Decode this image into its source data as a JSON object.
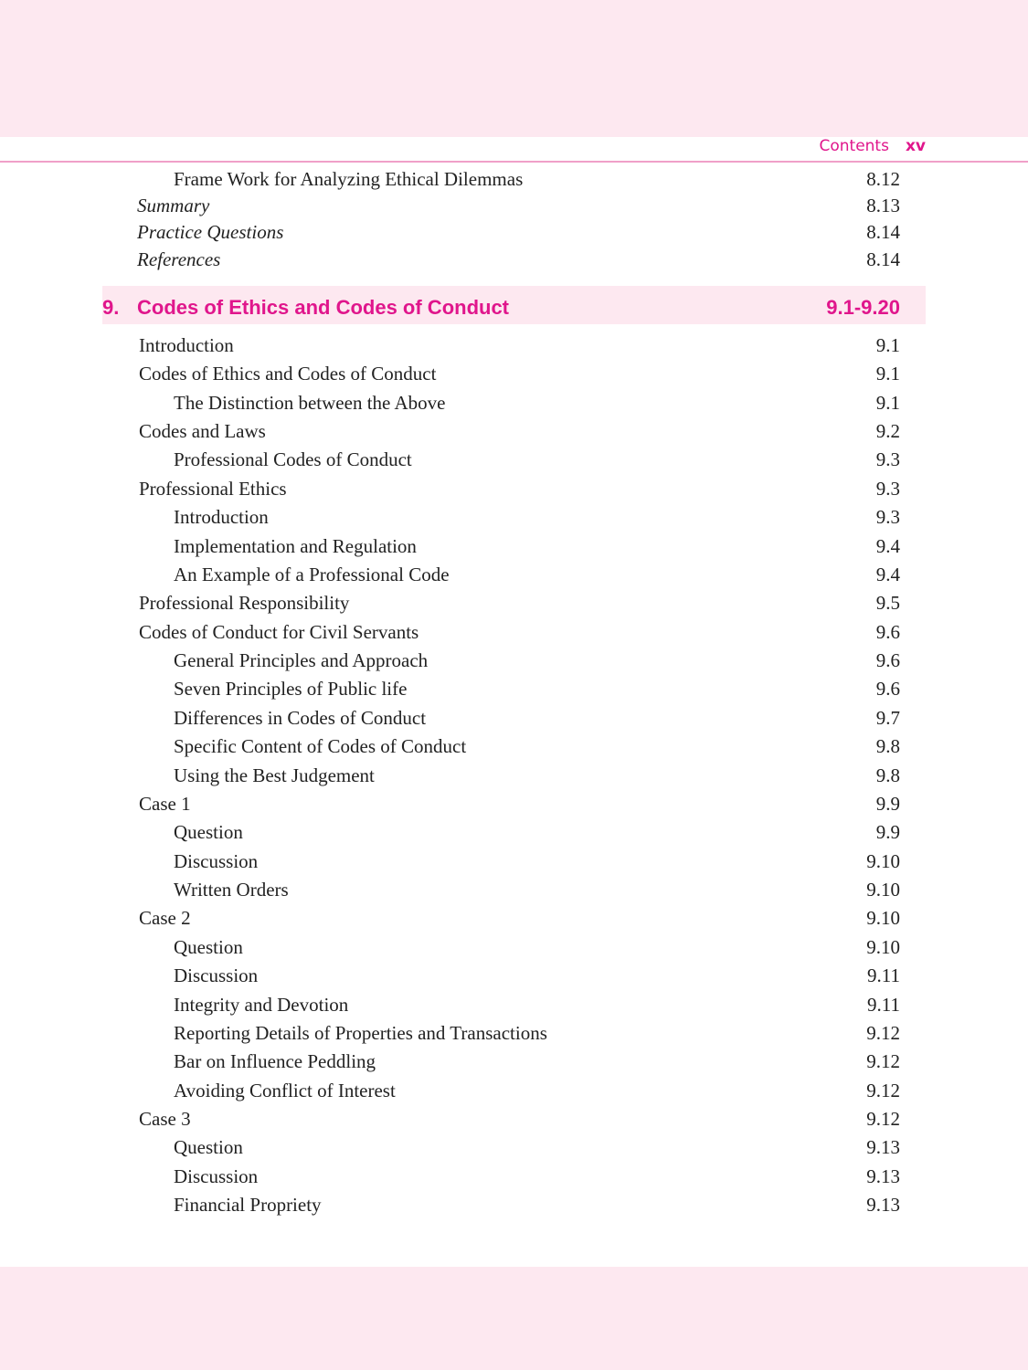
{
  "header": {
    "section": "Contents",
    "page": "xv"
  },
  "pre_entries": [
    {
      "title": "Frame Work for Analyzing Ethical Dilemmas",
      "page": "8.12",
      "style": "l2"
    },
    {
      "title": "Summary",
      "page": "8.13",
      "style": "it"
    },
    {
      "title": "Practice Questions",
      "page": "8.14",
      "style": "it"
    },
    {
      "title": "References",
      "page": "8.14",
      "style": "it"
    }
  ],
  "chapter": {
    "number": "9.",
    "title": "Codes of Ethics and Codes of Conduct",
    "pages": "9.1-9.20"
  },
  "entries": [
    {
      "title": "Introduction",
      "page": "9.1",
      "style": "l1"
    },
    {
      "title": "Codes of Ethics and Codes of Conduct",
      "page": "9.1",
      "style": "l1"
    },
    {
      "title": "The Distinction between the Above",
      "page": "9.1",
      "style": "l2"
    },
    {
      "title": "Codes and Laws",
      "page": "9.2",
      "style": "l1"
    },
    {
      "title": "Professional Codes of Conduct",
      "page": "9.3",
      "style": "l2"
    },
    {
      "title": "Professional Ethics",
      "page": "9.3",
      "style": "l1"
    },
    {
      "title": "Introduction",
      "page": "9.3",
      "style": "l2"
    },
    {
      "title": "Implementation and Regulation",
      "page": "9.4",
      "style": "l2"
    },
    {
      "title": "An Example of a Professional Code",
      "page": "9.4",
      "style": "l2"
    },
    {
      "title": "Professional Responsibility",
      "page": "9.5",
      "style": "l1"
    },
    {
      "title": "Codes of Conduct for Civil Servants",
      "page": "9.6",
      "style": "l1"
    },
    {
      "title": "General Principles and Approach",
      "page": "9.6",
      "style": "l2"
    },
    {
      "title": "Seven Principles of Public life",
      "page": "9.6",
      "style": "l2"
    },
    {
      "title": "Differences in Codes of Conduct",
      "page": "9.7",
      "style": "l2"
    },
    {
      "title": "Specific Content of Codes of Conduct",
      "page": "9.8",
      "style": "l2"
    },
    {
      "title": "Using the Best Judgement",
      "page": "9.8",
      "style": "l2"
    },
    {
      "title": "Case 1",
      "page": "9.9",
      "style": "l1"
    },
    {
      "title": "Question",
      "page": "9.9",
      "style": "l2"
    },
    {
      "title": "Discussion",
      "page": "9.10",
      "style": "l2"
    },
    {
      "title": "Written Orders",
      "page": "9.10",
      "style": "l2"
    },
    {
      "title": "Case 2",
      "page": "9.10",
      "style": "l1"
    },
    {
      "title": "Question",
      "page": "9.10",
      "style": "l2"
    },
    {
      "title": "Discussion",
      "page": "9.11",
      "style": "l2"
    },
    {
      "title": "Integrity and Devotion",
      "page": "9.11",
      "style": "l2"
    },
    {
      "title": "Reporting Details of Properties and Transactions",
      "page": "9.12",
      "style": "l2"
    },
    {
      "title": "Bar on Influence Peddling",
      "page": "9.12",
      "style": "l2"
    },
    {
      "title": "Avoiding Conflict of Interest",
      "page": "9.12",
      "style": "l2"
    },
    {
      "title": "Case 3",
      "page": "9.12",
      "style": "l1"
    },
    {
      "title": "Question",
      "page": "9.13",
      "style": "l2"
    },
    {
      "title": "Discussion",
      "page": "9.13",
      "style": "l2"
    },
    {
      "title": "Financial Propriety",
      "page": "9.13",
      "style": "l2"
    }
  ],
  "colors": {
    "accent": "#e0168c",
    "band": "#fde8f0",
    "rule": "#f0a0c8"
  }
}
